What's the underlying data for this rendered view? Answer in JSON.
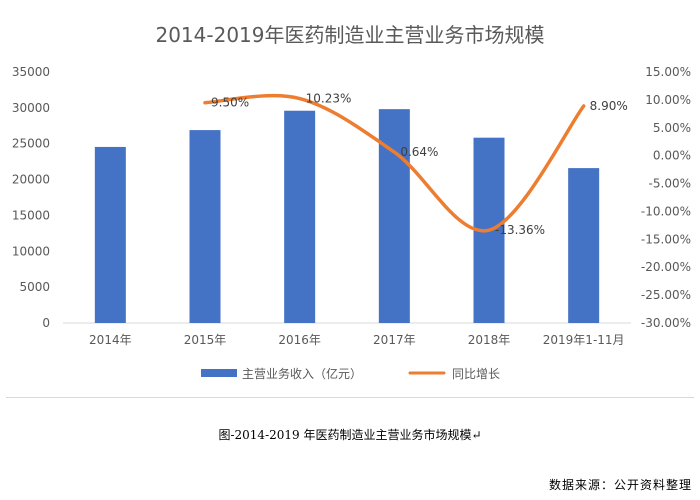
{
  "chart_data": {
    "type": "bar",
    "title": "2014-2019年医药制造业主营业务市场规模",
    "categories": [
      "2014年",
      "2015年",
      "2016年",
      "2017年",
      "2018年",
      "2019年1-11月"
    ],
    "series": [
      {
        "name": "主营业务收入（亿元）",
        "type": "bar",
        "axis": "left",
        "color": "#4472c4",
        "values": [
          24550,
          26900,
          29600,
          29820,
          25840,
          21600
        ]
      },
      {
        "name": "同比增长",
        "type": "line",
        "axis": "right",
        "color": "#ed7d31",
        "values": [
          null,
          9.5,
          10.23,
          0.64,
          -13.36,
          8.9
        ],
        "labels": [
          "",
          "9.50%",
          "10.23%",
          "0.64%",
          "-13.36%",
          "8.90%"
        ]
      }
    ],
    "y_left": {
      "range": [
        0,
        35000
      ],
      "ticks": [
        "0",
        "5000",
        "10000",
        "15000",
        "20000",
        "25000",
        "30000",
        "35000"
      ]
    },
    "y_right": {
      "range": [
        -30,
        15
      ],
      "ticks": [
        "-30.00%",
        "-25.00%",
        "-20.00%",
        "-15.00%",
        "-10.00%",
        "-5.00%",
        "0.00%",
        "5.00%",
        "10.00%",
        "15.00%"
      ]
    },
    "grid": false,
    "legend_position": "bottom"
  },
  "caption": "图-2014-2019 年医药制造业主营业务市场规模↵",
  "source": "数据来源：公开资料整理"
}
